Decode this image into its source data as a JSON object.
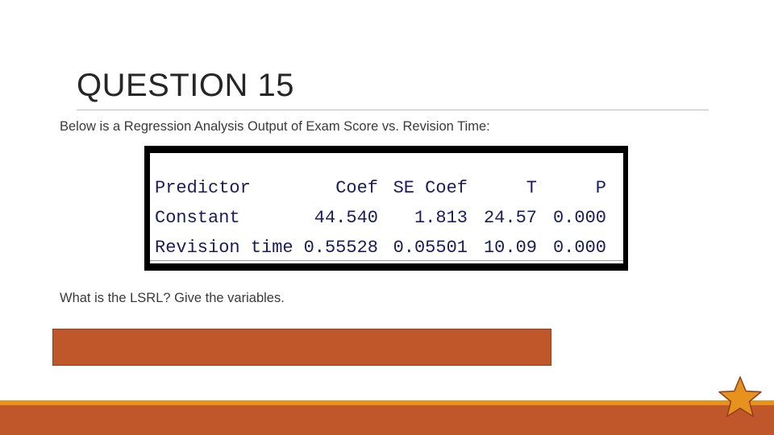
{
  "slide": {
    "title": "QUESTION 15",
    "intro": "Below is a Regression Analysis Output of Exam Score vs. Revision Time:",
    "question": "What is the LSRL?  Give the variables."
  },
  "regression_table": {
    "headers": [
      "Predictor",
      "Coef",
      "SE Coef",
      "T",
      "P"
    ],
    "rows": [
      [
        "Constant",
        "44.540",
        "1.813",
        "24.57",
        "0.000"
      ],
      [
        "Revision time",
        "0.55528",
        "0.05501",
        "10.09",
        "0.000"
      ]
    ]
  },
  "colors": {
    "accent": "#c0572a",
    "accent_line": "#e8921e",
    "table_text": "#1a1d5a"
  },
  "icons": {
    "footer": "star-icon"
  }
}
